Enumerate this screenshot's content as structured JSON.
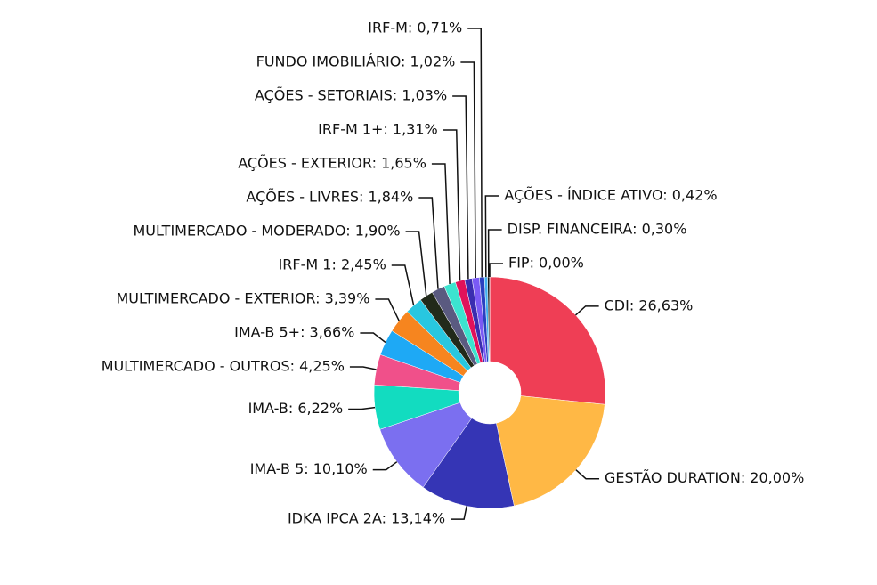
{
  "chart_data": {
    "type": "pie",
    "donut": true,
    "values": [
      26.63,
      20.0,
      13.14,
      10.1,
      6.22,
      4.25,
      3.66,
      3.39,
      2.45,
      1.9,
      1.84,
      1.65,
      1.31,
      1.03,
      1.02,
      0.71,
      0.42,
      0.3,
      0.0
    ],
    "value_labels": [
      "CDI: 26,63%",
      "GESTÃO DURATION: 20,00%",
      "IDKA IPCA 2A: 13,14%",
      "IMA-B 5: 10,10%",
      "IMA-B: 6,22%",
      "MULTIMERCADO - OUTROS: 4,25%",
      "IMA-B 5+: 3,66%",
      "MULTIMERCADO - EXTERIOR: 3,39%",
      "IRF-M 1: 2,45%",
      "MULTIMERCADO - MODERADO: 1,90%",
      "AÇÕES - LIVRES: 1,84%",
      "AÇÕES - EXTERIOR: 1,65%",
      "IRF-M 1+: 1,31%",
      "AÇÕES - SETORIAIS: 1,03%",
      "FUNDO IMOBILIÁRIO: 1,02%",
      "IRF-M: 0,71%",
      "AÇÕES - ÍNDICE ATIVO: 0,42%",
      "DISP. FINANCEIRA: 0,30%",
      "FIP: 0,00%"
    ],
    "colors": [
      "#ef3e55",
      "#ffb845",
      "#3535b5",
      "#7b6ff0",
      "#12dcc0",
      "#f0508a",
      "#1ea9f5",
      "#f6851f",
      "#28c7e0",
      "#222a1a",
      "#5a5a80",
      "#3ce3cf",
      "#e0125a",
      "#3a2db0",
      "#7a5af5",
      "#2a40c0",
      "#40b0f0",
      "#1a1a1a",
      "#888888"
    ]
  }
}
